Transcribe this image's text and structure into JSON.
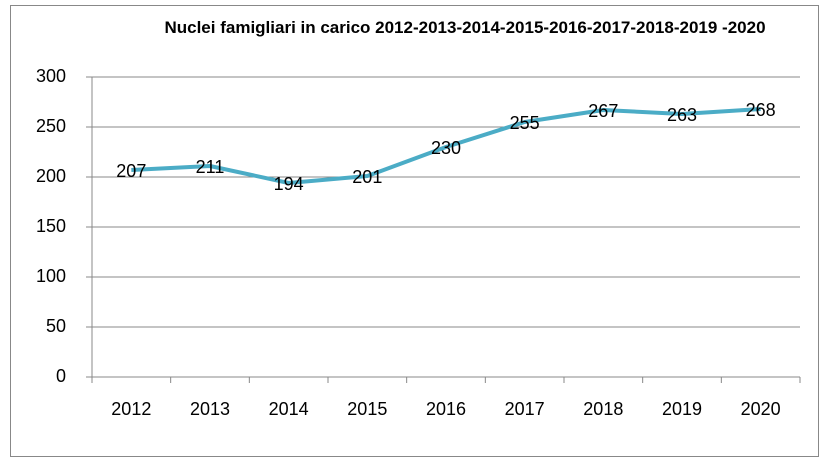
{
  "chart_data": {
    "type": "line",
    "title": "Nuclei famigliari in carico 2012-2013-2014-2015-2016-2017-2018-2019 -2020",
    "categories": [
      "2012",
      "2013",
      "2014",
      "2015",
      "2016",
      "2017",
      "2018",
      "2019",
      "2020"
    ],
    "series": [
      {
        "name": "Nuclei famigliari",
        "color": "#4bacc6",
        "values": [
          207,
          211,
          194,
          201,
          230,
          255,
          267,
          263,
          268
        ]
      }
    ],
    "ylim": [
      0,
      300
    ],
    "yticks": [
      0,
      50,
      100,
      150,
      200,
      250,
      300
    ],
    "grid": true
  }
}
